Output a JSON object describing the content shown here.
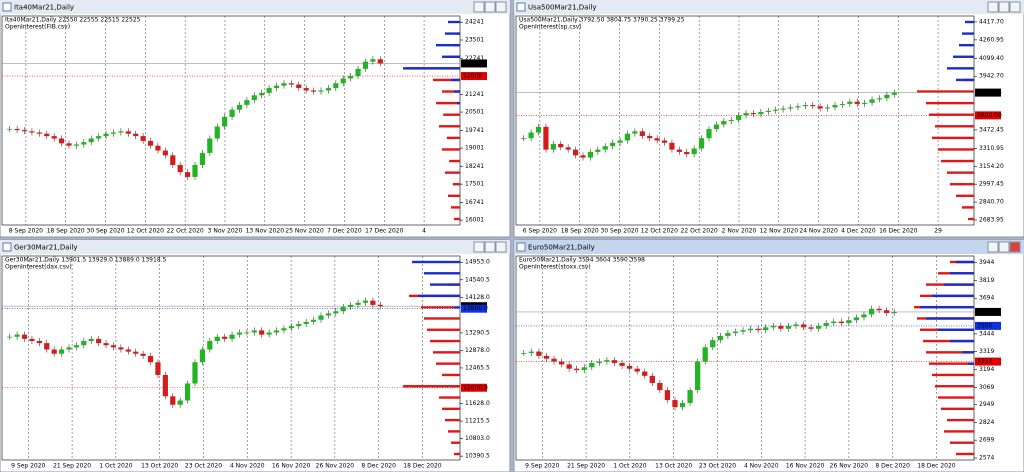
{
  "windows": [
    {
      "title": "Ita40Mar21,Daily",
      "info": "Ita40Mar21,Daily  22550 22555 22515 22525",
      "indicator": "OpenInterest(FIB.csv)",
      "ylim": [
        15800,
        24500
      ],
      "yticks": [
        24241,
        23501,
        22741,
        21241,
        20501,
        19741,
        19001,
        18241,
        17501,
        16741,
        16001
      ],
      "price_labels": [
        {
          "value": 22525,
          "label": "22525",
          "color": "#000000"
        },
        {
          "value": 22000,
          "label": "22000",
          "color": "#e00000"
        }
      ],
      "dates": [
        "8 Sep 2020",
        "18 Sep 2020",
        "30 Sep 2020",
        "12 Oct 2020",
        "22 Oct 2020",
        "3 Nov 2020",
        "13 Nov 2020",
        "25 Nov 2020",
        "7 Dec 2020",
        "17 Dec 2020",
        "4"
      ],
      "closes": [
        19800,
        19750,
        19700,
        19650,
        19600,
        19500,
        19400,
        19200,
        19100,
        19150,
        19250,
        19400,
        19500,
        19600,
        19650,
        19700,
        19600,
        19500,
        19300,
        19100,
        18900,
        18700,
        18300,
        18000,
        17800,
        18300,
        18800,
        19400,
        19900,
        20300,
        20600,
        20800,
        21000,
        21200,
        21300,
        21500,
        21600,
        21700,
        21650,
        21500,
        21400,
        21350,
        21400,
        21500,
        21700,
        21900,
        22000,
        22300,
        22600,
        22700,
        22525
      ],
      "oi_max": 100,
      "oi_calls": [
        10,
        15,
        20,
        12,
        25,
        18,
        30,
        22,
        35,
        28,
        40,
        30,
        45,
        90,
        20,
        10,
        5,
        0
      ],
      "oi_puts": [
        0,
        0,
        0,
        0,
        0,
        0,
        0,
        0,
        0,
        0,
        5,
        10,
        15,
        95,
        30,
        40,
        25,
        20
      ]
    },
    {
      "title": "Usa500Mar21,Daily",
      "info": "Usa500Mar21,Daily  3792.50 3804.75 3790.25 3799.25",
      "indicator": "OpenInterest(sp.csv)",
      "ylim": [
        2640,
        4470
      ],
      "yticks": [
        {
          "value": 4417.7,
          "label": "4417.70"
        },
        4260.95,
        {
          "value": 4099.4,
          "label": "4099.40"
        },
        {
          "value": 3942.7,
          "label": "3942.70"
        },
        3472.45,
        3310.95,
        {
          "value": 3154.2,
          "label": "3154.20"
        },
        2997.45,
        {
          "value": 2840.7,
          "label": "2840.70"
        },
        2683.95
      ],
      "price_labels": [
        {
          "value": 3799.25,
          "label": "3799.25",
          "color": "#000000"
        },
        {
          "value": 3600,
          "label": "3600.00",
          "color": "#e00000"
        }
      ],
      "dates": [
        "6 Sep 2020",
        "18 Sep 2020",
        "30 Sep 2020",
        "12 Oct 2020",
        "22 Oct 2020",
        "2 Nov 2020",
        "12 Nov 2020",
        "24 Nov 2020",
        "4 Dec 2020",
        "16 Dec 2020",
        "29"
      ],
      "closes": [
        3400,
        3450,
        3500,
        3300,
        3350,
        3320,
        3300,
        3250,
        3230,
        3280,
        3300,
        3330,
        3360,
        3380,
        3440,
        3460,
        3420,
        3400,
        3380,
        3360,
        3300,
        3280,
        3260,
        3310,
        3400,
        3480,
        3520,
        3550,
        3560,
        3600,
        3620,
        3610,
        3630,
        3640,
        3650,
        3660,
        3670,
        3680,
        3690,
        3680,
        3660,
        3670,
        3690,
        3700,
        3720,
        3700,
        3710,
        3740,
        3750,
        3780,
        3799.25
      ],
      "oi_max": 100,
      "oi_calls": [
        10,
        20,
        30,
        40,
        45,
        55,
        60,
        70,
        65,
        75,
        80,
        95,
        20,
        0,
        0,
        0,
        0,
        0
      ],
      "oi_puts": [
        0,
        0,
        0,
        0,
        0,
        0,
        0,
        0,
        0,
        0,
        0,
        0,
        30,
        45,
        35,
        25,
        20,
        15
      ]
    },
    {
      "title": "Ger30Mar21,Daily",
      "info": "Ger30Mar21,Daily  13901.5 13929.0 13889.0 13918.5",
      "indicator": "OpenInterest(dax.csv)",
      "ylim": [
        10300,
        15100
      ],
      "yticks": [
        {
          "value": 14953,
          "label": "14953.0"
        },
        14540.5,
        {
          "value": 14128,
          "label": "14128.0"
        },
        13290.5,
        {
          "value": 12878,
          "label": "12878.0"
        },
        12465.5,
        {
          "value": 11628,
          "label": "11628.0"
        },
        11215.5,
        {
          "value": 10803,
          "label": "10803.0"
        },
        10390.5
      ],
      "price_labels": [
        {
          "value": 13918.5,
          "label": "13918.5",
          "color": "#000000"
        },
        {
          "value": 13860,
          "label": "13860.0",
          "color": "#1030e0"
        },
        {
          "value": 12000,
          "label": "12000.0",
          "color": "#e00000"
        }
      ],
      "dates": [
        "9 Sep 2020",
        "21 Sep 2020",
        "1 Oct 2020",
        "13 Oct 2020",
        "23 Oct 2020",
        "4 Nov 2020",
        "16 Nov 2020",
        "26 Nov 2020",
        "8 Dec 2020",
        "18 Dec 2020"
      ],
      "closes": [
        13200,
        13250,
        13150,
        13100,
        13050,
        12900,
        12800,
        12900,
        12950,
        13000,
        13100,
        13150,
        13050,
        13000,
        12950,
        12900,
        12850,
        12800,
        12750,
        12600,
        12300,
        11800,
        11600,
        11700,
        12100,
        12600,
        12900,
        13100,
        13200,
        13150,
        13250,
        13300,
        13300,
        13350,
        13250,
        13300,
        13350,
        13400,
        13450,
        13500,
        13550,
        13600,
        13700,
        13750,
        13800,
        13900,
        13950,
        14000,
        14050,
        13950,
        13918.5
      ],
      "oi_max": 100,
      "oi_calls": [
        10,
        15,
        20,
        25,
        30,
        35,
        95,
        30,
        40,
        45,
        50,
        55,
        60,
        65,
        85,
        20,
        0,
        0
      ],
      "oi_puts": [
        0,
        0,
        0,
        0,
        0,
        0,
        0,
        0,
        0,
        0,
        0,
        0,
        0,
        10,
        70,
        50,
        60,
        80
      ]
    },
    {
      "title": "Euro50Mar21,Daily",
      "info": "Euro50Mar21,Daily  3594 3604 3590 3598",
      "indicator": "OpenInterest(stoxx.csv)",
      "ylim": [
        2560,
        3990
      ],
      "yticks": [
        3944,
        3819,
        3694,
        3444,
        3319,
        3194,
        3069,
        2949,
        2824,
        2699,
        2574
      ],
      "price_labels": [
        {
          "value": 3598,
          "label": "3598",
          "color": "#000000"
        },
        {
          "value": 3500,
          "label": "3500",
          "color": "#1030e0"
        },
        {
          "value": 3250,
          "label": "3250",
          "color": "#e00000"
        }
      ],
      "dates": [
        "9 Sep 2020",
        "21 Sep 2020",
        "1 Oct 2020",
        "13 Oct 2020",
        "23 Oct 2020",
        "4 Nov 2020",
        "16 Nov 2020",
        "26 Nov 2020",
        "8 Dec 2020",
        "18 Dec 2020"
      ],
      "closes": [
        3310,
        3320,
        3290,
        3270,
        3250,
        3230,
        3200,
        3190,
        3210,
        3240,
        3250,
        3260,
        3240,
        3220,
        3200,
        3180,
        3150,
        3100,
        3050,
        2980,
        2930,
        2960,
        3050,
        3250,
        3350,
        3400,
        3430,
        3450,
        3460,
        3470,
        3480,
        3470,
        3490,
        3500,
        3480,
        3500,
        3510,
        3490,
        3480,
        3500,
        3520,
        3530,
        3520,
        3540,
        3560,
        3580,
        3620,
        3610,
        3590,
        3598
      ],
      "oi_max": 100,
      "oi_calls": [
        30,
        40,
        50,
        45,
        55,
        60,
        65,
        70,
        75,
        80,
        85,
        90,
        95,
        100,
        90,
        80,
        60,
        40
      ],
      "oi_puts": [
        0,
        0,
        0,
        0,
        0,
        0,
        0,
        0,
        10,
        20,
        40,
        60,
        80,
        90,
        70,
        50,
        40,
        30
      ]
    }
  ]
}
